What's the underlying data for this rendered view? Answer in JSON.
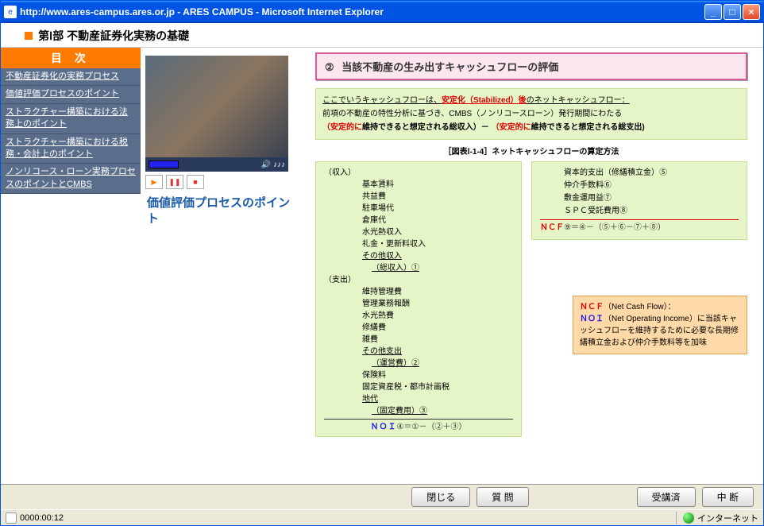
{
  "titlebar": {
    "text": "http://www.ares-campus.ares.or.jp - ARES CAMPUS - Microsoft Internet Explorer"
  },
  "header": {
    "title": "第Ⅰ部 不動産証券化実務の基礎"
  },
  "sidebar": {
    "title": "目 次",
    "items": [
      "不動産証券化の実務プロセス",
      "価値評価プロセスのポイント",
      "ストラクチャー構築における法務上のポイント",
      "ストラクチャー構築における税務・会計上のポイント",
      "ノンリコース・ローン実務プロセスのポイントとCMBS"
    ]
  },
  "video": {
    "sound_label": "🔊 ♪♪♪",
    "title": "価値評価プロセスのポイント"
  },
  "section": {
    "num": "②",
    "title": "当該不動産の生み出すキャッシュフローの評価"
  },
  "greenbox": {
    "line1_a": "ここでいうキャッシュフローは、",
    "line1_b": "安定化（Stabilized）後",
    "line1_c": "のネットキャッシュフロー：",
    "line2": "前項の不動産の特性分析に基づき、CMBS（ノンリコースローン）発行期間にわたる",
    "line3_a": "（安定的に",
    "line3_b": "維持できると想定される総収入）－ ",
    "line3_c": "（安定的に",
    "line3_d": "維持できると想定される総支出)"
  },
  "diagram_title": "［図表Ⅰ-1-4］ネットキャッシュフローの算定方法",
  "calc_left": {
    "income_label": "（収入）",
    "items_income": [
      "基本賃料",
      "共益費",
      "駐車場代",
      "倉庫代",
      "水光熱収入",
      "礼金・更新料収入"
    ],
    "income_other": "その他収入",
    "income_total": "（総収入）①",
    "expense_label": "（支出）",
    "items_expense": [
      "維持管理費",
      "管理業務報酬",
      "水光熱費",
      "修繕費",
      "雑費"
    ],
    "expense_other": "その他支出",
    "expense_op": "（運営費）②",
    "items_expense2": [
      "保険料",
      "固定資産税・都市計画税"
    ],
    "expense_land": "地代",
    "expense_fixed": "（固定費用）③",
    "noi": "ＮＯＩ",
    "noi_formula": "④＝①－（②＋③）"
  },
  "calc_right": {
    "items": [
      "資本的支出（修繕積立金）⑤",
      "仲介手数料⑥",
      "敷金運用益⑦",
      "ＳＰＣ受託費用⑧"
    ],
    "ncf": "ＮＣＦ",
    "ncf_formula": "⑨＝④－（⑤＋⑥－⑦＋⑧）"
  },
  "orange": {
    "ncf": "ＮＣＦ",
    "ncf_full": "（Net Cash Flow）：",
    "noi": "ＮＯＩ",
    "noi_full": "（Net Operating Income）",
    "rest": "に当該キャッシュフローを維持するために必要な長期修繕積立金および仲介手数料等を加味"
  },
  "buttons": {
    "close": "閉じる",
    "question": "質 問",
    "done": "受講済",
    "suspend": "中 断"
  },
  "status": {
    "time": "0000:00:12",
    "zone": "インターネット"
  }
}
